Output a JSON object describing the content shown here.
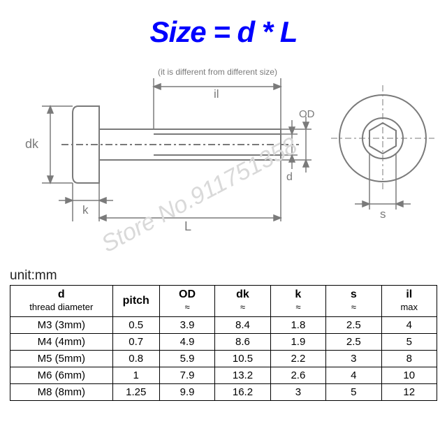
{
  "title_text": "Size = d * L",
  "title_fontsize": 42,
  "note_text": "(it is different from different size)",
  "unit_text": "unit:mm",
  "watermark_text": "Store No.911751358",
  "colors": {
    "title": "#0000fe",
    "stroke": "#7a7a7a",
    "text": "#7a7a7a",
    "watermark": "#d9d9d9",
    "table_border": "#000000",
    "background": "#ffffff"
  },
  "diagram_labels": {
    "dk": "dk",
    "k": "k",
    "L": "L",
    "il": "il",
    "d": "d",
    "OD": "OD",
    "s": "s"
  },
  "table": {
    "columns": [
      {
        "main": "d",
        "sub": "thread diameter"
      },
      {
        "main": "pitch",
        "sub": ""
      },
      {
        "main": "OD",
        "sub": "≈"
      },
      {
        "main": "dk",
        "sub": "≈"
      },
      {
        "main": "k",
        "sub": "≈"
      },
      {
        "main": "s",
        "sub": "≈"
      },
      {
        "main": "il",
        "sub": "max"
      }
    ],
    "col_widths_pct": [
      24,
      11,
      13,
      13,
      13,
      13,
      13
    ],
    "rows": [
      [
        "M3 (3mm)",
        "0.5",
        "3.9",
        "8.4",
        "1.8",
        "2.5",
        "4"
      ],
      [
        "M4 (4mm)",
        "0.7",
        "4.9",
        "8.6",
        "1.9",
        "2.5",
        "5"
      ],
      [
        "M5 (5mm)",
        "0.8",
        "5.9",
        "10.5",
        "2.2",
        "3",
        "8"
      ],
      [
        "M6 (6mm)",
        "1",
        "7.9",
        "13.2",
        "2.6",
        "4",
        "10"
      ],
      [
        "M8 (8mm)",
        "1.25",
        "9.9",
        "16.2",
        "3",
        "5",
        "12"
      ]
    ]
  }
}
